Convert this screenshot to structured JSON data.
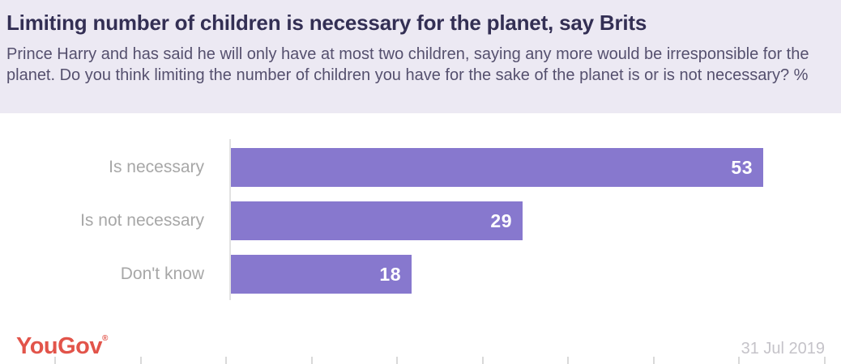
{
  "header": {
    "title": "Limiting number of children is necessary for the planet, say Brits",
    "subtitle": "Prince Harry and has said he will only have at most two children, saying any more would be irresponsible for the planet. Do you think limiting the number of children you have for the sake of the planet is or is not necessary? %"
  },
  "chart_data": {
    "type": "bar",
    "orientation": "horizontal",
    "categories": [
      "Is necessary",
      "Is not necessary",
      "Don't know"
    ],
    "values": [
      53,
      29,
      18
    ],
    "value_suffix": "%",
    "title": "Limiting number of children is necessary for the planet, say Brits",
    "xlabel": "",
    "ylabel": "",
    "xlim": [
      0,
      60
    ],
    "grid": false,
    "legend": false,
    "bar_color": "#8778ce",
    "value_label_color": "#ffffff",
    "category_label_color": "#a7a7a7"
  },
  "footer": {
    "logo": "YouGov",
    "logo_mark": "®",
    "date": "31 Jul 2019"
  },
  "colors": {
    "header_background": "#ece9f3",
    "title_text": "#332f54",
    "subtitle_text": "#55506e",
    "bar_accent": "#8778ce",
    "brand_red": "#e2544a",
    "date_text": "#c5c3c9"
  }
}
